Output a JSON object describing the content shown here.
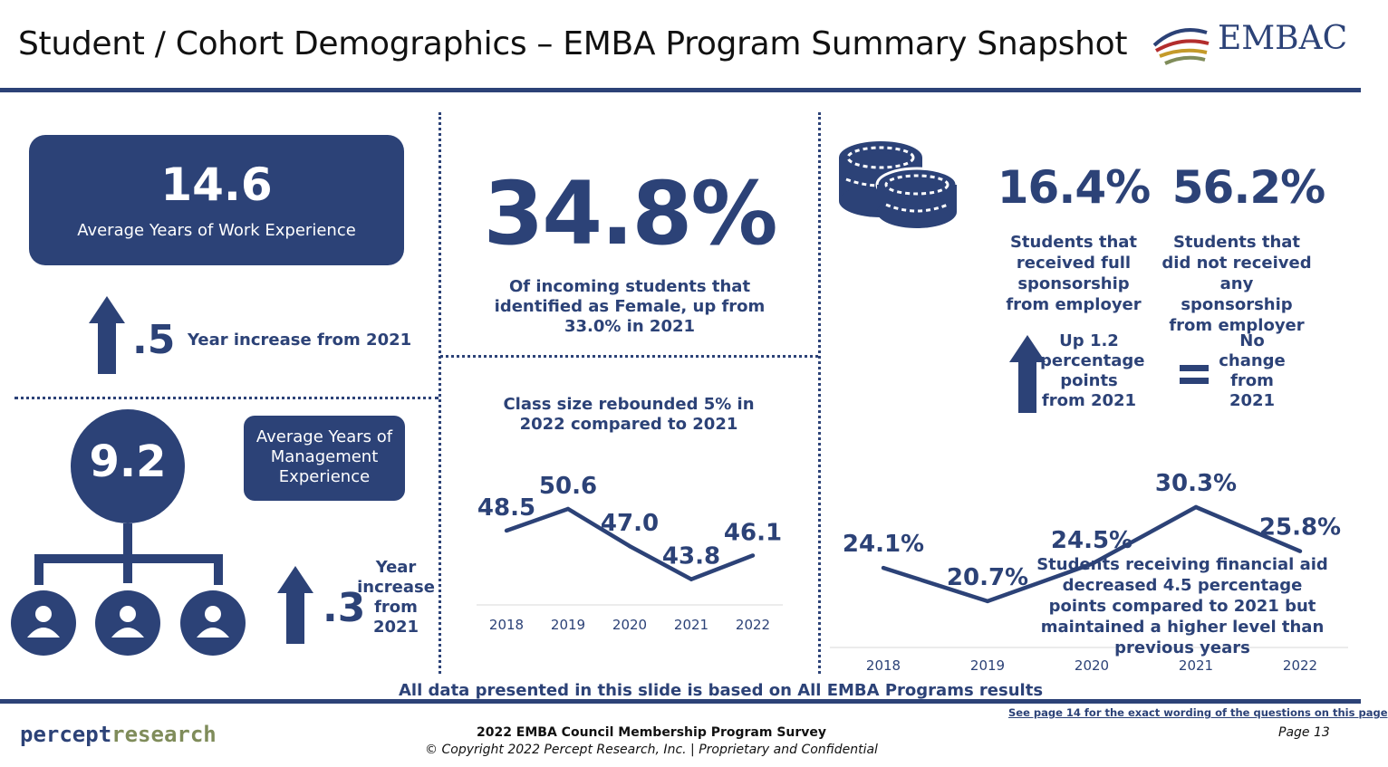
{
  "header": {
    "title": "Student / Cohort Demographics – EMBA Program Summary Snapshot",
    "logo_text": "EMBAC"
  },
  "work_experience": {
    "value": "14.6",
    "label": "Average Years of Work Experience",
    "increase_value": ".5",
    "increase_label": "Year increase from 2021",
    "increase_direction": "up"
  },
  "management_experience": {
    "value": "9.2",
    "label": "Average Years of Management Experience",
    "increase_value": ".3",
    "increase_label": "Year increase from 2021",
    "increase_direction": "up",
    "icon": "org-chart-people-icon"
  },
  "female": {
    "value": "34.8%",
    "description": "Of incoming students that identified as Female, up from 33.0% in 2021"
  },
  "class_size": {
    "note": "Class size rebounded 5% in 2022 compared to 2021"
  },
  "sponsorship": {
    "icon": "coins-icon",
    "full": {
      "value": "16.4%",
      "description": "Students that received full sponsorship from employer",
      "change": "Up 1.2 percentage points from 2021",
      "change_direction": "up"
    },
    "none": {
      "value": "56.2%",
      "description": "Students that did not received any sponsorship from employer",
      "change": "No change from 2021",
      "change_direction": "equal"
    }
  },
  "financial_aid": {
    "note": "Students receiving financial aid decreased 4.5 percentage points compared to 2021 but maintained a higher level than previous years"
  },
  "chart_data": [
    {
      "type": "line",
      "categories": [
        "2018",
        "2019",
        "2020",
        "2021",
        "2022"
      ],
      "values": [
        48.5,
        50.6,
        47.0,
        43.8,
        46.1
      ],
      "labels": [
        "48.5",
        "50.6",
        "47.0",
        "43.8",
        "46.1"
      ],
      "title": "",
      "xlabel": "",
      "ylabel": "",
      "ylim": [
        38,
        52
      ],
      "grid": false,
      "color": "#2c4277"
    },
    {
      "type": "line",
      "categories": [
        "2018",
        "2019",
        "2020",
        "2021",
        "2022"
      ],
      "values": [
        24.1,
        20.7,
        24.5,
        30.3,
        25.8
      ],
      "labels": [
        "24.1%",
        "20.7%",
        "24.5%",
        "30.3%",
        "25.8%"
      ],
      "title": "",
      "xlabel": "",
      "ylabel": "",
      "ylim": [
        0,
        40
      ],
      "grid": false,
      "color": "#2c4277"
    }
  ],
  "footer": {
    "data_note": "All data presented in this slide is based on All EMBA Programs results",
    "wording_link": "See page 14 for the exact wording of the questions on this page",
    "survey": "2022 EMBA Council Membership Program Survey",
    "copyright": "© Copyright 2022 Percept Research, Inc. | Proprietary and Confidential",
    "page": "Page 13",
    "brand_part1": "percept",
    "brand_part2": "research"
  },
  "colors": {
    "navy": "#2c4277",
    "olive": "#7f8c5a"
  }
}
